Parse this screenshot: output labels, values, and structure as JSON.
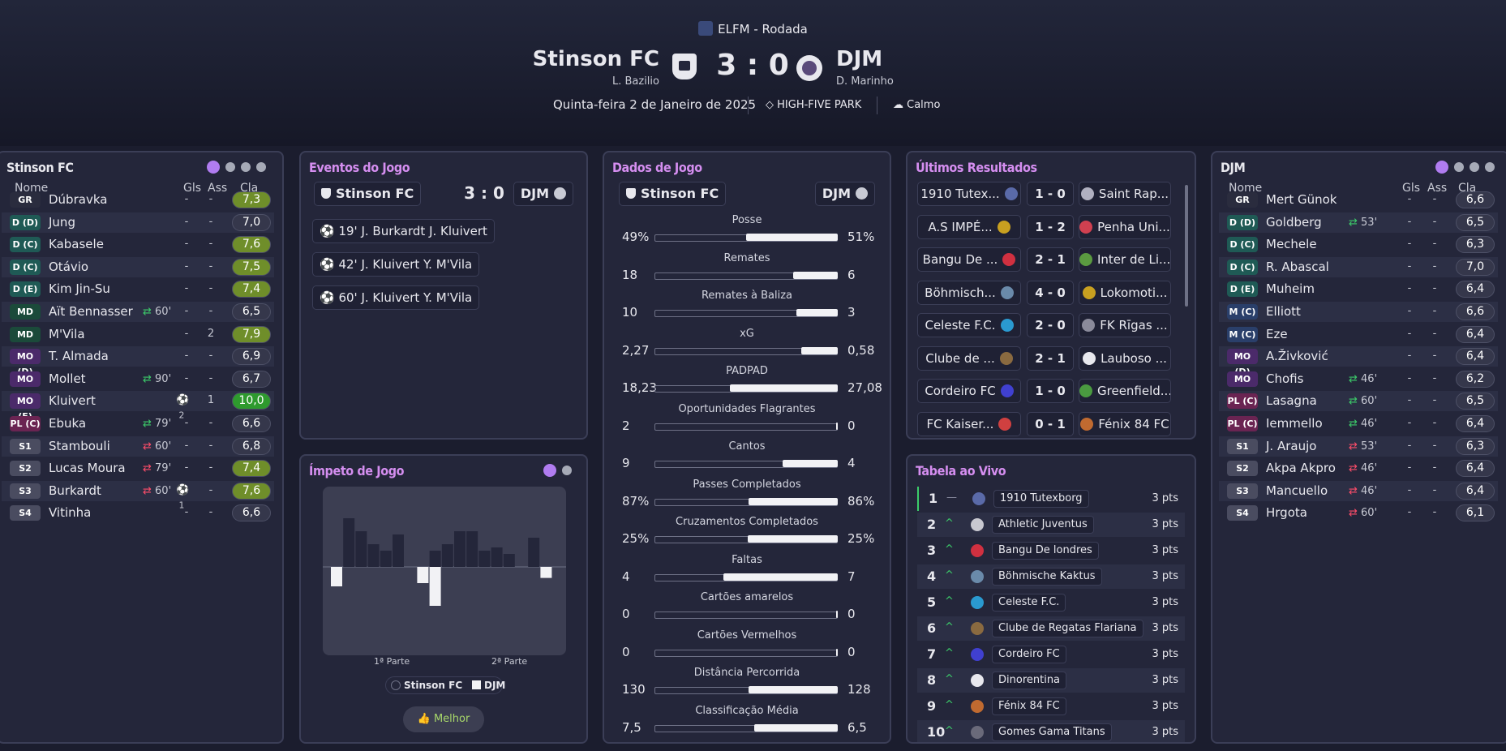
{
  "header": {
    "competition": "ELFM - Rodada",
    "home_team": "Stinson FC",
    "home_manager": "L. Bazilio",
    "away_team": "DJM",
    "away_manager": "D. Marinho",
    "score": "3 : 0",
    "date": "Quinta-feira 2 de Janeiro de 2025",
    "stadium": "HIGH-FIVE PARK",
    "weather": "Calmo"
  },
  "columns": {
    "name": "Nome",
    "goals": "Gls",
    "assists": "Ass",
    "rating": "Cla"
  },
  "home_lineup": {
    "title": "Stinson FC",
    "players": [
      {
        "pos": "GR",
        "name": "Dúbravka",
        "sub": "",
        "goals": "-",
        "assists": "-",
        "rating": "7,3"
      },
      {
        "pos": "D (D)",
        "name": "Jung",
        "sub": "",
        "goals": "-",
        "assists": "-",
        "rating": "7,0"
      },
      {
        "pos": "D (C)",
        "name": "Kabasele",
        "sub": "",
        "goals": "-",
        "assists": "-",
        "rating": "7,6"
      },
      {
        "pos": "D (C)",
        "name": "Otávio",
        "sub": "",
        "goals": "-",
        "assists": "-",
        "rating": "7,5"
      },
      {
        "pos": "D (E)",
        "name": "Kim Jin-Su",
        "sub": "",
        "goals": "-",
        "assists": "-",
        "rating": "7,4"
      },
      {
        "pos": "MD",
        "name": "Aït Bennasser",
        "sub": "60'",
        "goals": "-",
        "assists": "-",
        "rating": "6,5"
      },
      {
        "pos": "MD",
        "name": "M'Vila",
        "sub": "",
        "goals": "-",
        "assists": "2",
        "rating": "7,9"
      },
      {
        "pos": "MO (D)",
        "name": "T. Almada",
        "sub": "",
        "goals": "-",
        "assists": "-",
        "rating": "6,9"
      },
      {
        "pos": "MO (C)",
        "name": "Mollet",
        "sub": "90'",
        "goals": "-",
        "assists": "-",
        "rating": "6,7"
      },
      {
        "pos": "MO (E)",
        "name": "Kluivert",
        "sub": "",
        "goals": "2",
        "assists": "1",
        "rating": "10,0"
      },
      {
        "pos": "PL (C)",
        "name": "Ebuka",
        "sub": "79'",
        "goals": "-",
        "assists": "-",
        "rating": "6,6"
      },
      {
        "pos": "S1",
        "name": "Stambouli",
        "sub": "60'",
        "goals": "-",
        "assists": "-",
        "rating": "6,8"
      },
      {
        "pos": "S2",
        "name": "Lucas Moura",
        "sub": "79'",
        "goals": "-",
        "assists": "-",
        "rating": "7,4"
      },
      {
        "pos": "S3",
        "name": "Burkardt",
        "sub": "60'",
        "goals": "1",
        "assists": "-",
        "rating": "7,6"
      },
      {
        "pos": "S4",
        "name": "Vitinha",
        "sub": "",
        "goals": "-",
        "assists": "-",
        "rating": "6,6"
      }
    ]
  },
  "away_lineup": {
    "title": "DJM",
    "players": [
      {
        "pos": "GR",
        "name": "Mert Günok",
        "sub": "",
        "goals": "-",
        "assists": "-",
        "rating": "6,6"
      },
      {
        "pos": "D (D)",
        "name": "Goldberg",
        "sub": "53'",
        "goals": "-",
        "assists": "-",
        "rating": "6,5"
      },
      {
        "pos": "D (C)",
        "name": "Mechele",
        "sub": "",
        "goals": "-",
        "assists": "-",
        "rating": "6,3"
      },
      {
        "pos": "D (C)",
        "name": "R. Abascal",
        "sub": "",
        "goals": "-",
        "assists": "-",
        "rating": "7,0"
      },
      {
        "pos": "D (E)",
        "name": "Muheim",
        "sub": "",
        "goals": "-",
        "assists": "-",
        "rating": "6,4"
      },
      {
        "pos": "M (C)",
        "name": "Elliott",
        "sub": "",
        "goals": "-",
        "assists": "-",
        "rating": "6,6"
      },
      {
        "pos": "M (C)",
        "name": "Eze",
        "sub": "",
        "goals": "-",
        "assists": "-",
        "rating": "6,4"
      },
      {
        "pos": "MO (D)",
        "name": "A.Živković",
        "sub": "",
        "goals": "-",
        "assists": "-",
        "rating": "6,4"
      },
      {
        "pos": "MO (E)",
        "name": "Chofis",
        "sub": "46'",
        "goals": "-",
        "assists": "-",
        "rating": "6,2"
      },
      {
        "pos": "PL (C)",
        "name": "Lasagna",
        "sub": "60'",
        "goals": "-",
        "assists": "-",
        "rating": "6,5"
      },
      {
        "pos": "PL (C)",
        "name": "Iemmello",
        "sub": "46'",
        "goals": "-",
        "assists": "-",
        "rating": "6,4"
      },
      {
        "pos": "S1",
        "name": "J. Araujo",
        "sub": "53'",
        "goals": "-",
        "assists": "-",
        "rating": "6,3"
      },
      {
        "pos": "S2",
        "name": "Akpa Akpro",
        "sub": "46'",
        "goals": "-",
        "assists": "-",
        "rating": "6,4"
      },
      {
        "pos": "S3",
        "name": "Mancuello",
        "sub": "46'",
        "goals": "-",
        "assists": "-",
        "rating": "6,4"
      },
      {
        "pos": "S4",
        "name": "Hrgota",
        "sub": "60'",
        "goals": "-",
        "assists": "-",
        "rating": "6,1"
      }
    ]
  },
  "events": {
    "title": "Eventos do Jogo",
    "home": "Stinson FC",
    "away": "DJM",
    "score": "3 : 0",
    "items": [
      {
        "minute": "19'",
        "scorer": "J. Burkardt",
        "assist": "J. Kluivert"
      },
      {
        "minute": "42'",
        "scorer": "J. Kluivert",
        "assist": "Y. M'Vila"
      },
      {
        "minute": "60'",
        "scorer": "J. Kluivert",
        "assist": "Y. M'Vila"
      }
    ]
  },
  "momentum": {
    "title": "Ímpeto de Jogo",
    "first_half": "1ª Parte",
    "second_half": "2ª Parte",
    "legend_home": "Stinson FC",
    "legend_away": "DJM",
    "button": "Melhor"
  },
  "stats": {
    "title": "Dados de Jogo",
    "home": "Stinson FC",
    "away": "DJM"
  },
  "results": {
    "title": "Últimos Resultados",
    "items": [
      {
        "home": "1910 Tutex...",
        "score": "1 - 0",
        "away": "Saint Rap..."
      },
      {
        "home": "A.S IMPÉ...",
        "score": "1 - 2",
        "away": "Penha Uni..."
      },
      {
        "home": "Bangu De ...",
        "score": "2 - 1",
        "away": "Inter de Li..."
      },
      {
        "home": "Böhmisch...",
        "score": "4 - 0",
        "away": "Lokomoti..."
      },
      {
        "home": "Celeste F.C.",
        "score": "2 - 0",
        "away": "FK Rīgas ..."
      },
      {
        "home": "Clube de ...",
        "score": "2 - 1",
        "away": "Lauboso ..."
      },
      {
        "home": "Cordeiro FC",
        "score": "1 - 0",
        "away": "Greenfield..."
      },
      {
        "home": "FC Kaiser...",
        "score": "0 - 1",
        "away": "Fénix 84 FC"
      }
    ]
  },
  "table": {
    "title": "Tabela ao Vivo",
    "rows": [
      {
        "pos": "1",
        "move": "—",
        "team": "1910 Tutexborg",
        "pts": "3 pts"
      },
      {
        "pos": "2",
        "move": "^",
        "team": "Athletic Juventus",
        "pts": "3 pts"
      },
      {
        "pos": "3",
        "move": "^",
        "team": "Bangu De londres",
        "pts": "3 pts"
      },
      {
        "pos": "4",
        "move": "^",
        "team": "Böhmische Kaktus",
        "pts": "3 pts"
      },
      {
        "pos": "5",
        "move": "^",
        "team": "Celeste F.C.",
        "pts": "3 pts"
      },
      {
        "pos": "6",
        "move": "^",
        "team": "Clube de Regatas Flariana",
        "pts": "3 pts"
      },
      {
        "pos": "7",
        "move": "^",
        "team": "Cordeiro FC",
        "pts": "3 pts"
      },
      {
        "pos": "8",
        "move": "^",
        "team": "Dinorentina",
        "pts": "3 pts"
      },
      {
        "pos": "9",
        "move": "^",
        "team": "Fénix 84 FC",
        "pts": "3 pts"
      },
      {
        "pos": "10",
        "move": "^",
        "team": "Gomes Gama Titans",
        "pts": "3 pts"
      }
    ]
  },
  "chart_data": [
    {
      "type": "bar",
      "title": "Dados de Jogo",
      "categories": [
        "Posse",
        "Remates",
        "Remates à Baliza",
        "xG",
        "PADPAD",
        "Oportunidades Flagrantes",
        "Cantos",
        "Passes Completados",
        "Cruzamentos Completados",
        "Faltas",
        "Cartões amarelos",
        "Cartões Vermelhos",
        "Distância Percorrida",
        "Classificação Média"
      ],
      "series": [
        {
          "name": "Stinson FC",
          "labels": [
            "49%",
            "18",
            "10",
            "2,27",
            "18,23",
            "2",
            "9",
            "87%",
            "25%",
            "4",
            "0",
            "0",
            "130",
            "7,5"
          ],
          "values": [
            49,
            18,
            10,
            2.27,
            18.23,
            2,
            9,
            87,
            25,
            4,
            0,
            0,
            130,
            7.5
          ]
        },
        {
          "name": "DJM",
          "labels": [
            "51%",
            "6",
            "3",
            "0,58",
            "27,08",
            "0",
            "4",
            "86%",
            "25%",
            "7",
            "0",
            "0",
            "128",
            "6,5"
          ],
          "values": [
            51,
            6,
            3,
            0.58,
            27.08,
            0,
            4,
            86,
            25,
            7,
            0,
            0,
            128,
            6.5
          ]
        }
      ]
    },
    {
      "type": "bar",
      "title": "Ímpeto de Jogo",
      "x": [
        1,
        2,
        3,
        4,
        5,
        6,
        7,
        8,
        9,
        10,
        11,
        12,
        13,
        14,
        15,
        16,
        17,
        18
      ],
      "series": [
        {
          "name": "Stinson FC",
          "values": [
            0,
            75,
            55,
            35,
            25,
            50,
            0,
            0,
            25,
            35,
            55,
            55,
            25,
            30,
            20,
            0,
            45,
            0
          ]
        },
        {
          "name": "DJM",
          "values": [
            30,
            0,
            0,
            0,
            0,
            0,
            0,
            25,
            60,
            0,
            0,
            0,
            0,
            0,
            0,
            0,
            0,
            17
          ]
        }
      ],
      "ylim": [
        -60,
        80
      ]
    }
  ],
  "colors": {
    "accent": "#b07cf0",
    "rating_green": "#6f8e2a",
    "rating_best": "#2e8b2e",
    "sub_in": "#3ccc6a",
    "sub_out": "#ff4d6a",
    "panel": "#24263a",
    "border": "#3b3e57"
  }
}
